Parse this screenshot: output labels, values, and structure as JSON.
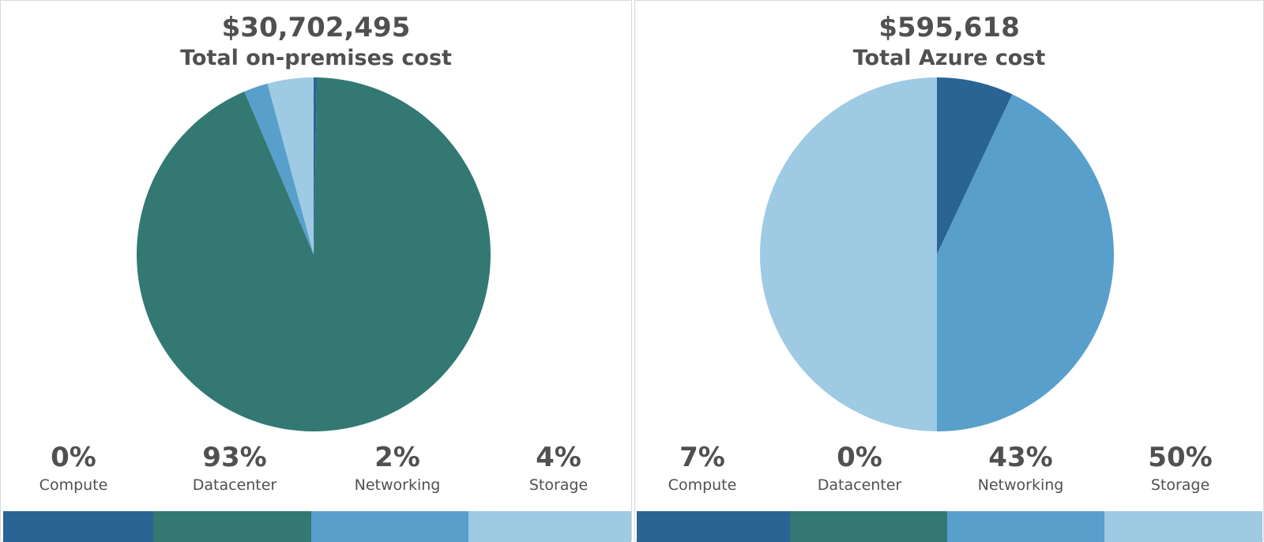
{
  "chart_data": [
    {
      "type": "pie",
      "total": "$30,702,495",
      "title": "Total on-premises cost",
      "categories": [
        "Compute",
        "Datacenter",
        "Networking",
        "Storage"
      ],
      "values": [
        0.3,
        93.3,
        2.2,
        4.2
      ],
      "labels": [
        "0%",
        "93%",
        "2%",
        "4%"
      ],
      "colors": [
        "#2a6494",
        "#337873",
        "#599fcb",
        "#9ecae4"
      ]
    },
    {
      "type": "pie",
      "total": "$595,618",
      "title": "Total Azure cost",
      "categories": [
        "Compute",
        "Datacenter",
        "Networking",
        "Storage"
      ],
      "values": [
        7,
        0,
        43,
        50
      ],
      "labels": [
        "7%",
        "0%",
        "43%",
        "50%"
      ],
      "colors": [
        "#2a6494",
        "#337873",
        "#599fcb",
        "#9ecae4"
      ]
    }
  ]
}
